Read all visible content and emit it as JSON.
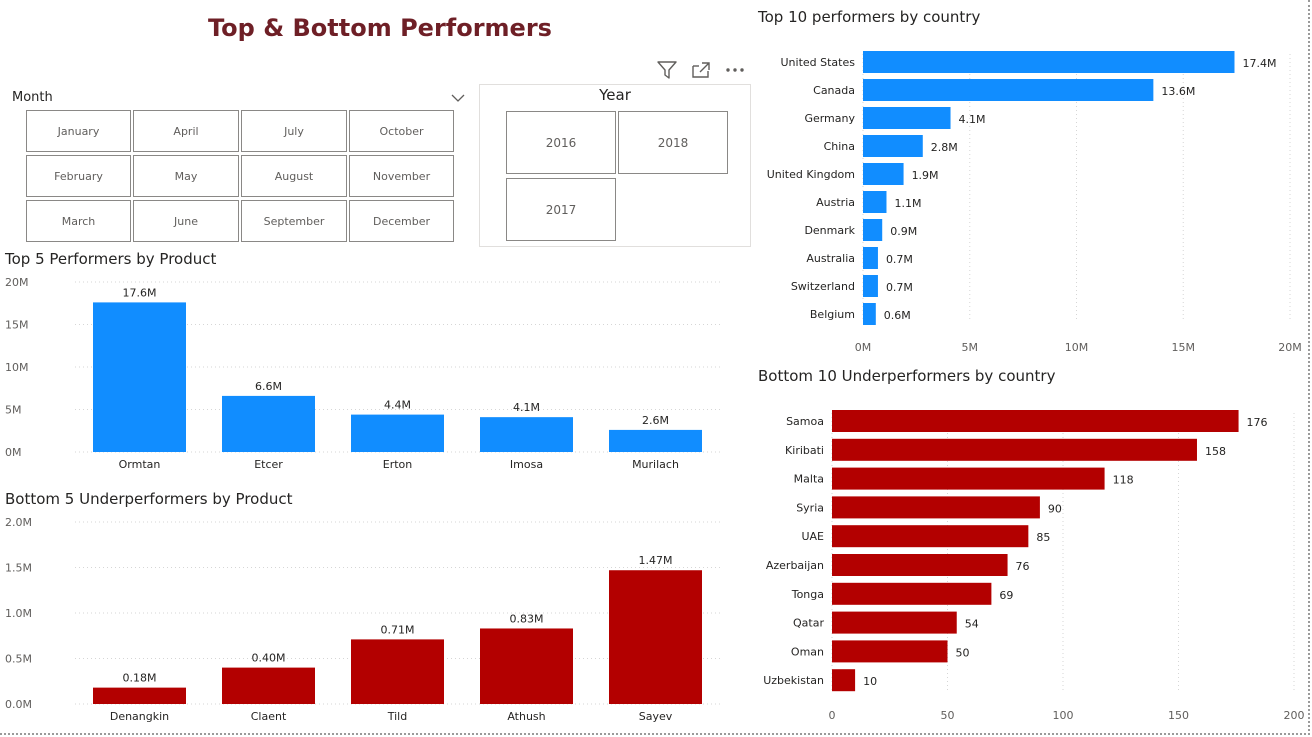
{
  "title": "Top & Bottom Performers",
  "month_slicer": {
    "label": "Month",
    "months": [
      "January",
      "April",
      "July",
      "October",
      "February",
      "May",
      "August",
      "November",
      "March",
      "June",
      "September",
      "December"
    ]
  },
  "year_slicer": {
    "label": "Year",
    "years": [
      "2016",
      "2018",
      "2017"
    ]
  },
  "colors": {
    "blue": "#118dff",
    "red": "#b30000",
    "title": "#6e1f26"
  },
  "icons": [
    "filter-icon",
    "focus-mode-icon",
    "more-options-icon",
    "chevron-down-icon"
  ],
  "chart_data": [
    {
      "id": "top5_product",
      "type": "bar",
      "title": "Top 5 Performers by Product",
      "categories": [
        "Ormtan",
        "Etcer",
        "Erton",
        "Imosa",
        "Murilach"
      ],
      "values": [
        17.6,
        6.6,
        4.4,
        4.1,
        2.6
      ],
      "data_labels": [
        "17.6M",
        "6.6M",
        "4.4M",
        "4.1M",
        "2.6M"
      ],
      "y_ticks": [
        "0M",
        "5M",
        "10M",
        "15M",
        "20M"
      ],
      "ylim": [
        0,
        20
      ],
      "grid": true
    },
    {
      "id": "bottom5_product",
      "type": "bar",
      "title": "Bottom 5 Underperformers by Product",
      "categories": [
        "Denangkin",
        "Claent",
        "Tild",
        "Athush",
        "Sayev"
      ],
      "values": [
        0.18,
        0.4,
        0.71,
        0.83,
        1.47
      ],
      "data_labels": [
        "0.18M",
        "0.40M",
        "0.71M",
        "0.83M",
        "1.47M"
      ],
      "y_ticks": [
        "0.0M",
        "0.5M",
        "1.0M",
        "1.5M",
        "2.0M"
      ],
      "ylim": [
        0,
        2.0
      ],
      "grid": true
    },
    {
      "id": "top10_country",
      "type": "bar",
      "orientation": "horizontal",
      "title": "Top 10 performers by country",
      "categories": [
        "United States",
        "Canada",
        "Germany",
        "China",
        "United Kingdom",
        "Austria",
        "Denmark",
        "Australia",
        "Switzerland",
        "Belgium"
      ],
      "values": [
        17.4,
        13.6,
        4.1,
        2.8,
        1.9,
        1.1,
        0.9,
        0.7,
        0.7,
        0.6
      ],
      "data_labels": [
        "17.4M",
        "13.6M",
        "4.1M",
        "2.8M",
        "1.9M",
        "1.1M",
        "0.9M",
        "0.7M",
        "0.7M",
        "0.6M"
      ],
      "x_ticks": [
        "0M",
        "5M",
        "10M",
        "15M",
        "20M"
      ],
      "xlim": [
        0,
        20
      ],
      "grid": true
    },
    {
      "id": "bottom10_country",
      "type": "bar",
      "orientation": "horizontal",
      "title": "Bottom 10 Underperformers by country",
      "categories": [
        "Samoa",
        "Kiribati",
        "Malta",
        "Syria",
        "UAE",
        "Azerbaijan",
        "Tonga",
        "Qatar",
        "Oman",
        "Uzbekistan"
      ],
      "values": [
        176,
        158,
        118,
        90,
        85,
        76,
        69,
        54,
        50,
        10
      ],
      "data_labels": [
        "176",
        "158",
        "118",
        "90",
        "85",
        "76",
        "69",
        "54",
        "50",
        "10"
      ],
      "x_ticks": [
        "0",
        "50",
        "100",
        "150",
        "200"
      ],
      "xlim": [
        0,
        200
      ],
      "grid": true
    }
  ]
}
